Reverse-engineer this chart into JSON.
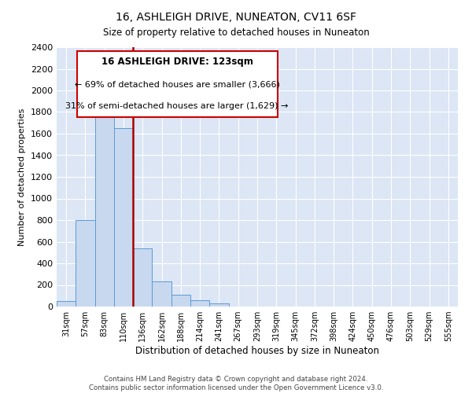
{
  "title": "16, ASHLEIGH DRIVE, NUNEATON, CV11 6SF",
  "subtitle": "Size of property relative to detached houses in Nuneaton",
  "xlabel": "Distribution of detached houses by size in Nuneaton",
  "ylabel": "Number of detached properties",
  "bar_labels": [
    "31sqm",
    "57sqm",
    "83sqm",
    "110sqm",
    "136sqm",
    "162sqm",
    "188sqm",
    "214sqm",
    "241sqm",
    "267sqm",
    "293sqm",
    "319sqm",
    "345sqm",
    "372sqm",
    "398sqm",
    "424sqm",
    "450sqm",
    "476sqm",
    "503sqm",
    "529sqm",
    "555sqm"
  ],
  "bar_values": [
    50,
    800,
    1875,
    1650,
    540,
    235,
    110,
    55,
    30,
    0,
    0,
    0,
    0,
    0,
    0,
    0,
    0,
    0,
    0,
    0,
    0
  ],
  "bar_color": "#c8d8ee",
  "bar_edge_color": "#5b9bd5",
  "vline_color": "#aa0000",
  "ylim": [
    0,
    2400
  ],
  "yticks": [
    0,
    200,
    400,
    600,
    800,
    1000,
    1200,
    1400,
    1600,
    1800,
    2000,
    2200,
    2400
  ],
  "annotation_title": "16 ASHLEIGH DRIVE: 123sqm",
  "annotation_line1": "← 69% of detached houses are smaller (3,666)",
  "annotation_line2": "31% of semi-detached houses are larger (1,629) →",
  "annotation_box_color": "#cc0000",
  "footer_line1": "Contains HM Land Registry data © Crown copyright and database right 2024.",
  "footer_line2": "Contains public sector information licensed under the Open Government Licence v3.0.",
  "fig_background": "#ffffff",
  "plot_background": "#dce6f5",
  "grid_color": "#ffffff",
  "title_fontsize": 10,
  "subtitle_fontsize": 9
}
